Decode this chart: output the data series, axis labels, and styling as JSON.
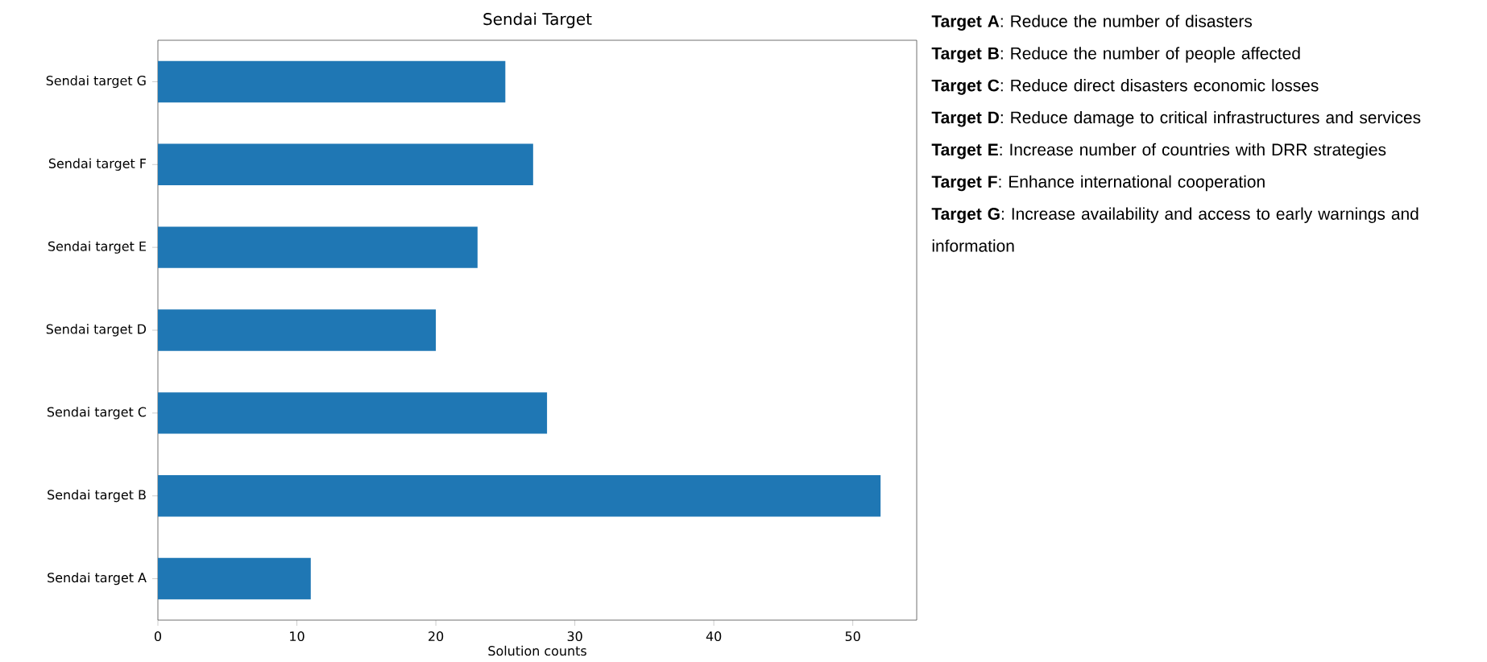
{
  "chart_data": {
    "type": "bar",
    "orientation": "horizontal",
    "title": "Sendai Target",
    "xlabel": "Solution counts",
    "categories": [
      "Sendai target G",
      "Sendai target F",
      "Sendai target E",
      "Sendai target D",
      "Sendai target C",
      "Sendai target B",
      "Sendai target A"
    ],
    "values": [
      25,
      27,
      23,
      20,
      28,
      52,
      11
    ],
    "color": "#1f77b4",
    "xlim": [
      0,
      54.6
    ],
    "xticks": [
      0,
      10,
      20,
      30,
      40,
      50
    ],
    "annotations": [
      "**Target A**: Reduce the number of disasters",
      "**Target B**: Reduce the number of people affected",
      "**Target C**: Reduce direct disasters economic losses",
      "**Target D**: Reduce damage to critical infrastructures and services",
      "**Target E**: Increase number of countries with DRR strategies",
      "**Target F**: Enhance international cooperation",
      "**Target G**: Increase availability and access to early warnings and information"
    ]
  }
}
